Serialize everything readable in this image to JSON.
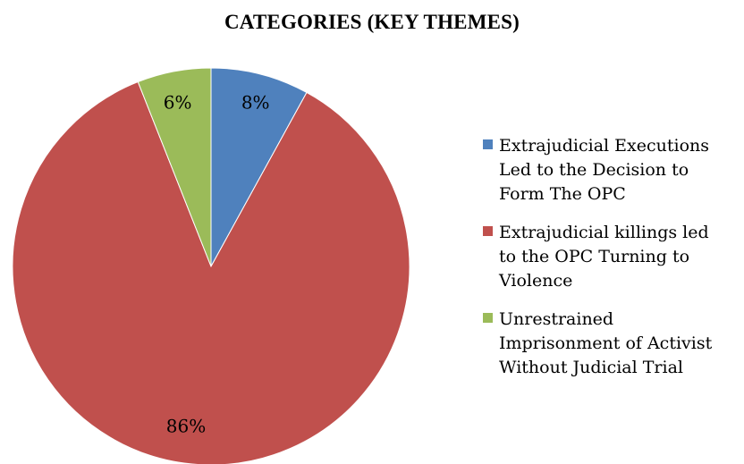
{
  "chart_data": {
    "type": "pie",
    "title": "CATEGORIES (KEY THEMES)",
    "slices": [
      {
        "name": "Extrajudicial Executions Led to the Decision to Form The OPC",
        "lines": [
          "Extrajudicial Executions",
          "Led to the Decision to",
          "Form The OPC"
        ],
        "value": 8,
        "label": "8%",
        "color": "#4f81bd"
      },
      {
        "name": "Extrajudicial killings led to the OPC Turning to Violence",
        "lines": [
          "Extrajudicial killings led",
          "to the OPC Turning to",
          "Violence"
        ],
        "value": 86,
        "label": "86%",
        "color": "#c0504d"
      },
      {
        "name": "Unrestrained Imprisonment of Activist Without Judicial Trial",
        "lines": [
          "Unrestrained",
          "Imprisonment of Activist",
          "Without Judicial Trial"
        ],
        "value": 6,
        "label": "6%",
        "color": "#9bbb59"
      }
    ],
    "legend_position": "right"
  }
}
